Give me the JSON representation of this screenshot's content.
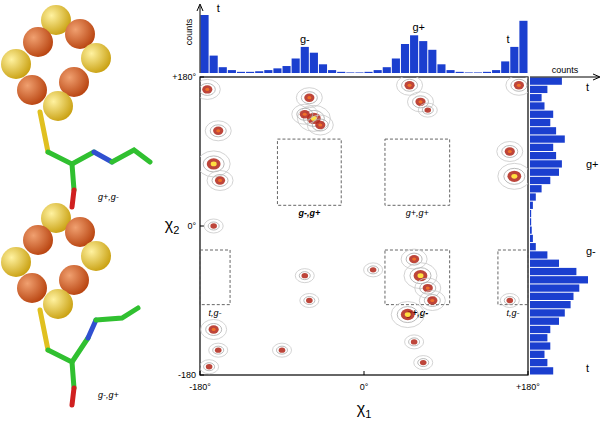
{
  "chart_data": {
    "type": "density_scatter",
    "x_label": "χ1",
    "y_label": "χ2",
    "xlim": [
      -180,
      180
    ],
    "ylim": [
      -180,
      180
    ],
    "xticks": [
      {
        "value": -180,
        "label": "-180°"
      },
      {
        "value": 0,
        "label": "0°"
      },
      {
        "value": 180,
        "label": "+180°"
      }
    ],
    "yticks": [
      {
        "value": -180,
        "label": "-180"
      },
      {
        "value": 0,
        "label": "0°"
      },
      {
        "value": 180,
        "label": "+180°"
      }
    ],
    "x": [
      -172,
      -160,
      -165,
      -158,
      -165,
      -60,
      -55,
      -48,
      -65,
      50,
      62,
      70,
      170,
      160,
      165,
      55,
      62,
      70,
      75,
      48,
      -65,
      -60,
      10,
      -165,
      -160,
      -170,
      -90,
      55,
      65,
      160
    ],
    "y": [
      165,
      115,
      75,
      55,
      0,
      155,
      130,
      122,
      135,
      170,
      150,
      140,
      170,
      90,
      60,
      -40,
      -60,
      -75,
      -90,
      -107,
      -60,
      -90,
      -53,
      -125,
      -150,
      -170,
      -150,
      -140,
      -165,
      -90
    ],
    "density": [
      2,
      2,
      3,
      2,
      1,
      2,
      3,
      2,
      2,
      2,
      2,
      1,
      2,
      2,
      3,
      2,
      3,
      2,
      2,
      3,
      1,
      1,
      1,
      2,
      1,
      1,
      1,
      1,
      1,
      1
    ],
    "regions": [
      {
        "label": "g-,g+",
        "xlim": [
          -95,
          -25
        ],
        "ylim": [
          25,
          105
        ]
      },
      {
        "label": "g+,g+",
        "xlim": [
          23,
          94
        ],
        "ylim": [
          25,
          105
        ]
      },
      {
        "label": "g+,g-",
        "xlim": [
          23,
          94
        ],
        "ylim": [
          -95,
          -29
        ]
      },
      {
        "label": "t,g-",
        "xlim": [
          -180,
          -147
        ],
        "ylim": [
          -95,
          -29
        ]
      },
      {
        "label": "t,g-",
        "xlim": [
          147,
          180
        ],
        "ylim": [
          -95,
          -29
        ]
      }
    ],
    "top_histogram": {
      "axis_label": "counts",
      "bins": [
        -180,
        -170,
        -160,
        -150,
        -140,
        -130,
        -120,
        -110,
        -100,
        -90,
        -80,
        -70,
        -60,
        -50,
        -40,
        -30,
        -20,
        -10,
        0,
        10,
        20,
        30,
        40,
        50,
        60,
        70,
        80,
        90,
        100,
        110,
        120,
        130,
        140,
        150,
        160,
        170,
        180
      ],
      "counts": [
        100,
        30,
        10,
        5,
        2,
        2,
        3,
        5,
        8,
        12,
        25,
        45,
        35,
        15,
        5,
        2,
        1,
        1,
        2,
        5,
        10,
        25,
        50,
        65,
        55,
        40,
        15,
        5,
        2,
        1,
        1,
        2,
        5,
        20,
        45,
        90
      ],
      "count_lim": [
        0,
        100
      ],
      "labels": [
        {
          "text": "t",
          "position": -160
        },
        {
          "text": "g-",
          "position": -65
        },
        {
          "text": "g+",
          "position": 60
        },
        {
          "text": "t",
          "position": 158
        }
      ]
    },
    "right_histogram": {
      "axis_label": "counts",
      "bins": [
        -180,
        -170,
        -160,
        -150,
        -140,
        -130,
        -120,
        -110,
        -100,
        -90,
        -80,
        -70,
        -60,
        -50,
        -40,
        -30,
        -20,
        -10,
        0,
        10,
        20,
        30,
        40,
        50,
        60,
        70,
        80,
        90,
        100,
        110,
        120,
        130,
        140,
        150,
        160,
        170,
        180
      ],
      "counts": [
        40,
        30,
        25,
        35,
        30,
        35,
        50,
        60,
        70,
        75,
        85,
        100,
        80,
        50,
        30,
        10,
        5,
        3,
        2,
        2,
        5,
        10,
        20,
        35,
        50,
        55,
        45,
        40,
        60,
        45,
        35,
        40,
        25,
        20,
        30,
        55
      ],
      "count_lim": [
        0,
        100
      ],
      "labels": [
        {
          "text": "t",
          "position": 168
        },
        {
          "text": "g+",
          "position": 75
        },
        {
          "text": "g-",
          "position": -30
        },
        {
          "text": "t",
          "position": -172
        }
      ]
    },
    "molecules": [
      {
        "label": "g+,g-"
      },
      {
        "label": "g-,g+"
      }
    ]
  }
}
